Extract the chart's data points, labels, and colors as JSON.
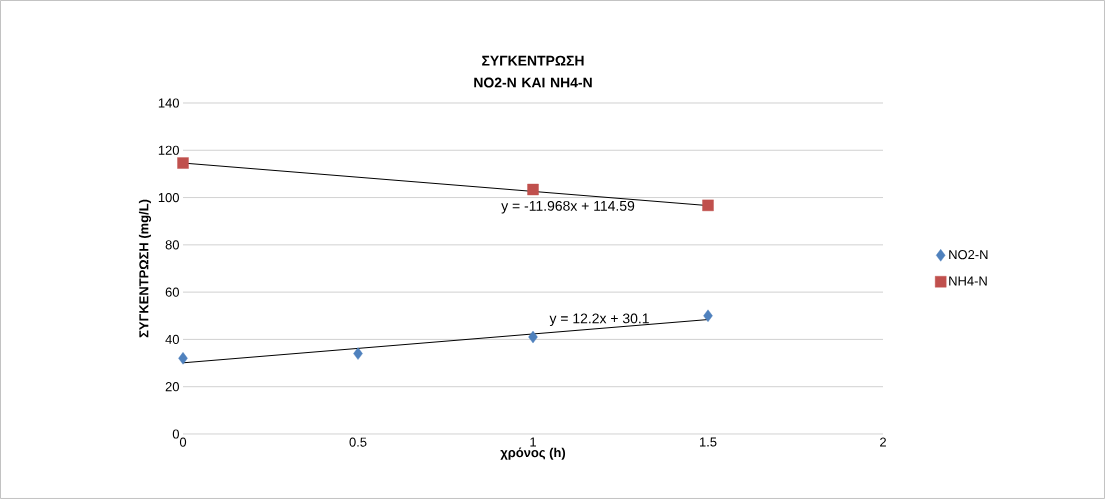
{
  "chart_data": {
    "type": "scatter",
    "title": "ΣΥΓΚΕΝΤΡΩΣΗ NO2-N ΚΑΙ NH4-N",
    "xlabel": "χρόνος (h)",
    "ylabel": "ΣΥΓΚΕΝΤΡΩΣΗ (mg/L)",
    "xlim": [
      0,
      2
    ],
    "xticks": [
      0,
      0.5,
      1,
      1.5,
      2
    ],
    "ylim": [
      0,
      140
    ],
    "yticks": [
      0,
      20,
      40,
      60,
      80,
      100,
      120,
      140
    ],
    "grid": "y",
    "legend": "right",
    "series": [
      {
        "name": "NO2-N",
        "marker": "diamond",
        "color": "#4f81bd",
        "x": [
          0,
          0.5,
          1,
          1.5
        ],
        "values": [
          32,
          34,
          41,
          50
        ]
      },
      {
        "name": "NH4-N",
        "marker": "square",
        "color": "#c0504d",
        "x": [
          0,
          1,
          1.5
        ],
        "values": [
          114.6,
          103.4,
          96.7
        ]
      },
      {
        "type": "line",
        "color": "#000000",
        "x": [
          0,
          1.5
        ],
        "values": [
          30.1,
          48.4
        ]
      },
      {
        "type": "line",
        "color": "#000000",
        "x": [
          0,
          1.5
        ],
        "values": [
          114.6,
          96.6
        ]
      }
    ],
    "annotations": [
      "y = 12.2x + 30.1",
      "y = -11.968x + 114.59"
    ]
  }
}
